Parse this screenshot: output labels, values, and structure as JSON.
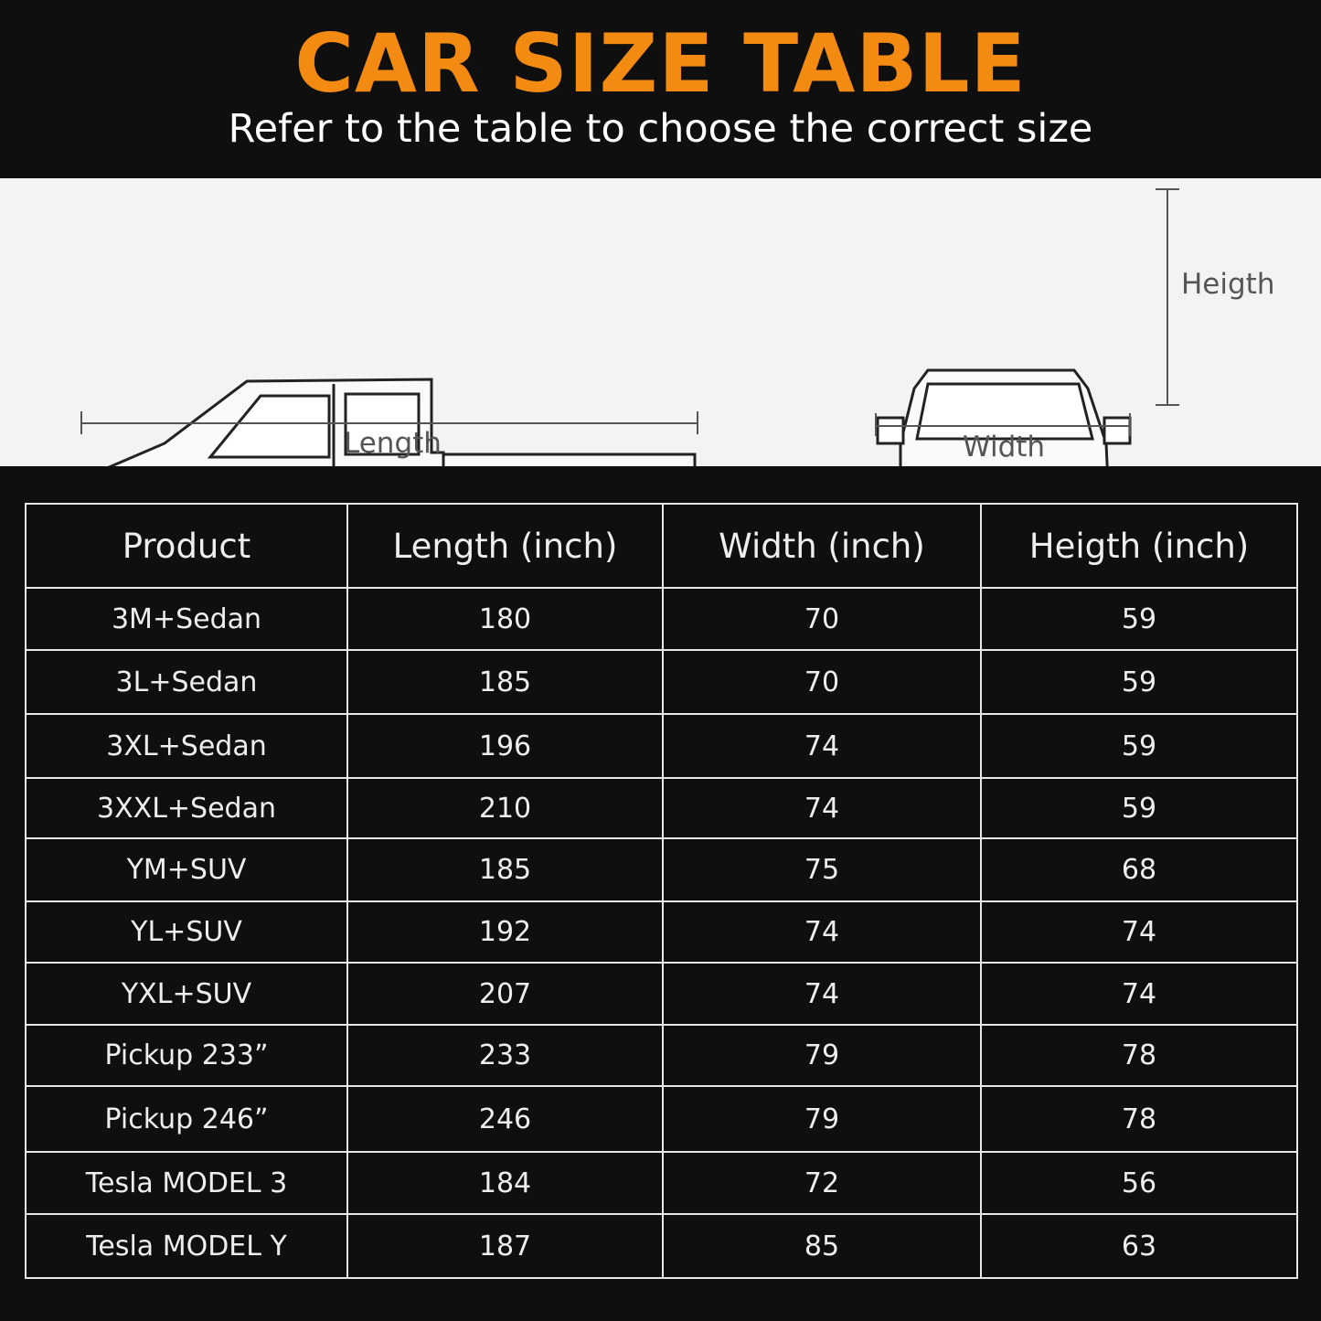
{
  "header": {
    "title": "CAR SIZE TABLE",
    "subtitle": "Refer to the table to choose the correct size"
  },
  "diagram": {
    "length_label": "Length",
    "width_label": "Width",
    "height_label": "Heigth"
  },
  "table": {
    "columns": [
      "Product",
      "Length (inch)",
      "Width (inch)",
      "Heigth (inch)"
    ],
    "rows": [
      [
        "3M+Sedan",
        "180",
        "70",
        "59"
      ],
      [
        "3L+Sedan",
        "185",
        "70",
        "59"
      ],
      [
        "3XL+Sedan",
        "196",
        "74",
        "59"
      ],
      [
        "3XXL+Sedan",
        "210",
        "74",
        "59"
      ],
      [
        "YM+SUV",
        "185",
        "75",
        "68"
      ],
      [
        "YL+SUV",
        "192",
        "74",
        "74"
      ],
      [
        "YXL+SUV",
        "207",
        "74",
        "74"
      ],
      [
        "Pickup 233”",
        "233",
        "79",
        "78"
      ],
      [
        "Pickup 246”",
        "246",
        "79",
        "78"
      ],
      [
        "Tesla MODEL 3",
        "184",
        "72",
        "56"
      ],
      [
        "Tesla MODEL Y",
        "187",
        "85",
        "63"
      ]
    ]
  },
  "colors": {
    "title": "#f38a12",
    "background": "#0f0f0f",
    "diagram_bg": "#f3f3f3"
  }
}
